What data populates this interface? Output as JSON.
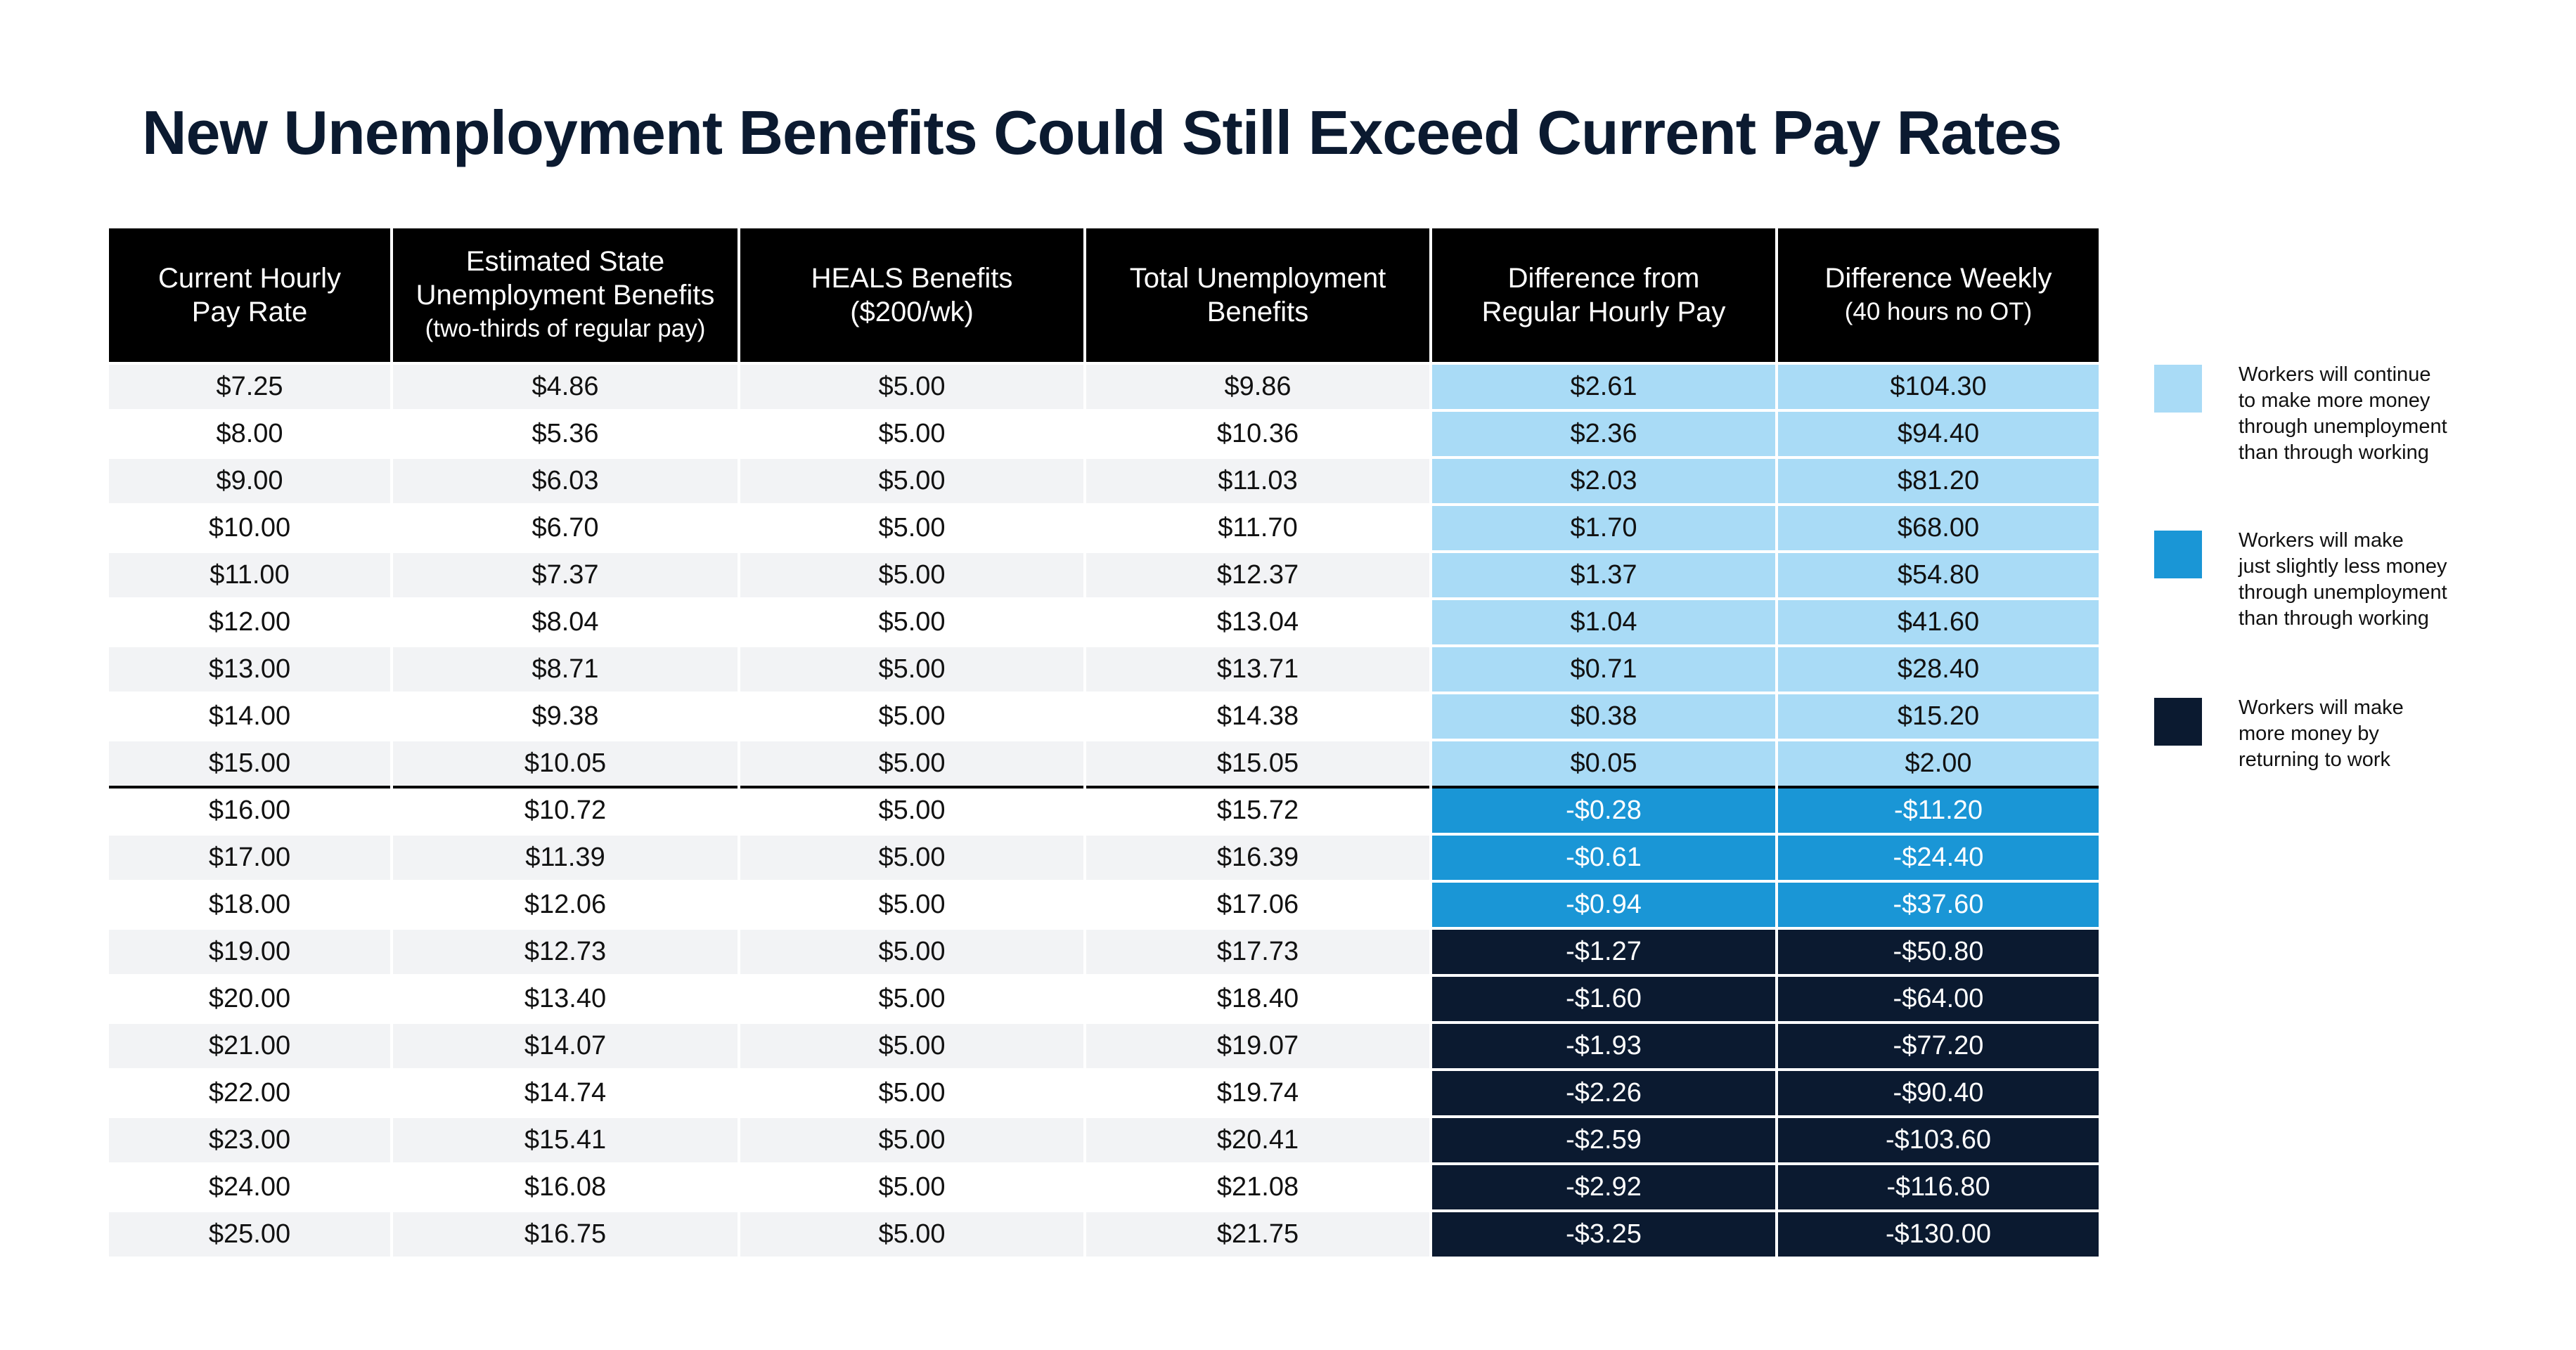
{
  "title": "New Unemployment Benefits Could Still Exceed Current Pay Rates",
  "colors": {
    "header_bg": "#000000",
    "more_unemployment": "#a9dbf6",
    "slightly_less": "#1a96d6",
    "more_working": "#0b1a30"
  },
  "chart_data": {
    "type": "table",
    "title": "New Unemployment Benefits Could Still Exceed Current Pay Rates",
    "columns": [
      {
        "label": "Current Hourly Pay Rate",
        "sub": ""
      },
      {
        "label": "Estimated State Unemployment Benefits",
        "sub": "(two-thirds of regular pay)"
      },
      {
        "label": "HEALS Benefits ($200/wk)",
        "sub": ""
      },
      {
        "label": "Total Unemployment Benefits",
        "sub": ""
      },
      {
        "label": "Difference from Regular Hourly Pay",
        "sub": ""
      },
      {
        "label": "Difference Weekly",
        "sub": "(40 hours no OT)"
      }
    ],
    "rows": [
      {
        "pay": "$7.25",
        "state": "$4.86",
        "heals": "$5.00",
        "total": "$9.86",
        "diff": "$2.61",
        "weekly": "$104.30",
        "level": "more"
      },
      {
        "pay": "$8.00",
        "state": "$5.36",
        "heals": "$5.00",
        "total": "$10.36",
        "diff": "$2.36",
        "weekly": "$94.40",
        "level": "more"
      },
      {
        "pay": "$9.00",
        "state": "$6.03",
        "heals": "$5.00",
        "total": "$11.03",
        "diff": "$2.03",
        "weekly": "$81.20",
        "level": "more"
      },
      {
        "pay": "$10.00",
        "state": "$6.70",
        "heals": "$5.00",
        "total": "$11.70",
        "diff": "$1.70",
        "weekly": "$68.00",
        "level": "more"
      },
      {
        "pay": "$11.00",
        "state": "$7.37",
        "heals": "$5.00",
        "total": "$12.37",
        "diff": "$1.37",
        "weekly": "$54.80",
        "level": "more"
      },
      {
        "pay": "$12.00",
        "state": "$8.04",
        "heals": "$5.00",
        "total": "$13.04",
        "diff": "$1.04",
        "weekly": "$41.60",
        "level": "more"
      },
      {
        "pay": "$13.00",
        "state": "$8.71",
        "heals": "$5.00",
        "total": "$13.71",
        "diff": "$0.71",
        "weekly": "$28.40",
        "level": "more"
      },
      {
        "pay": "$14.00",
        "state": "$9.38",
        "heals": "$5.00",
        "total": "$14.38",
        "diff": "$0.38",
        "weekly": "$15.20",
        "level": "more"
      },
      {
        "pay": "$15.00",
        "state": "$10.05",
        "heals": "$5.00",
        "total": "$15.05",
        "diff": "$0.05",
        "weekly": "$2.00",
        "level": "more"
      },
      {
        "pay": "$16.00",
        "state": "$10.72",
        "heals": "$5.00",
        "total": "$15.72",
        "diff": "-$0.28",
        "weekly": "-$11.20",
        "level": "slight"
      },
      {
        "pay": "$17.00",
        "state": "$11.39",
        "heals": "$5.00",
        "total": "$16.39",
        "diff": "-$0.61",
        "weekly": "-$24.40",
        "level": "slight"
      },
      {
        "pay": "$18.00",
        "state": "$12.06",
        "heals": "$5.00",
        "total": "$17.06",
        "diff": "-$0.94",
        "weekly": "-$37.60",
        "level": "slight"
      },
      {
        "pay": "$19.00",
        "state": "$12.73",
        "heals": "$5.00",
        "total": "$17.73",
        "diff": "-$1.27",
        "weekly": "-$50.80",
        "level": "work"
      },
      {
        "pay": "$20.00",
        "state": "$13.40",
        "heals": "$5.00",
        "total": "$18.40",
        "diff": "-$1.60",
        "weekly": "-$64.00",
        "level": "work"
      },
      {
        "pay": "$21.00",
        "state": "$14.07",
        "heals": "$5.00",
        "total": "$19.07",
        "diff": "-$1.93",
        "weekly": "-$77.20",
        "level": "work"
      },
      {
        "pay": "$22.00",
        "state": "$14.74",
        "heals": "$5.00",
        "total": "$19.74",
        "diff": "-$2.26",
        "weekly": "-$90.40",
        "level": "work"
      },
      {
        "pay": "$23.00",
        "state": "$15.41",
        "heals": "$5.00",
        "total": "$20.41",
        "diff": "-$2.59",
        "weekly": "-$103.60",
        "level": "work"
      },
      {
        "pay": "$24.00",
        "state": "$16.08",
        "heals": "$5.00",
        "total": "$21.08",
        "diff": "-$2.92",
        "weekly": "-$116.80",
        "level": "work"
      },
      {
        "pay": "$25.00",
        "state": "$16.75",
        "heals": "$5.00",
        "total": "$21.75",
        "diff": "-$3.25",
        "weekly": "-$130.00",
        "level": "work"
      }
    ],
    "legend": [
      {
        "level": "more",
        "text": "Workers will continue\nto make more money\nthrough unemployment\nthan through working",
        "color": "#a9dbf6"
      },
      {
        "level": "slight",
        "text": "Workers will make\njust slightly less money\nthrough unemployment\nthan through working",
        "color": "#1a96d6"
      },
      {
        "level": "work",
        "text": "Workers will make\nmore money by\nreturning to work",
        "color": "#0b1a30"
      }
    ]
  }
}
